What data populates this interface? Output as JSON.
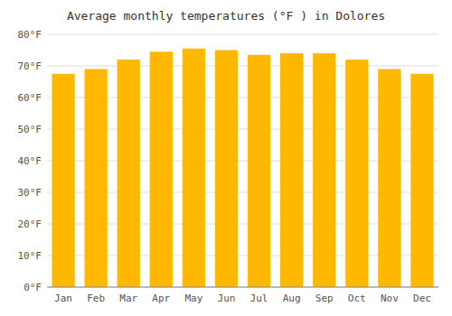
{
  "chart_data": {
    "type": "bar",
    "title": "Average monthly temperatures (°F ) in Dolores",
    "categories": [
      "Jan",
      "Feb",
      "Mar",
      "Apr",
      "May",
      "Jun",
      "Jul",
      "Aug",
      "Sep",
      "Oct",
      "Nov",
      "Dec"
    ],
    "values": [
      67.5,
      69.0,
      72.0,
      74.5,
      75.5,
      75.0,
      73.5,
      74.0,
      74.0,
      72.0,
      69.0,
      67.5
    ],
    "color": "#FFB800",
    "ylim": [
      0,
      80
    ],
    "yticks": [
      {
        "value": 0,
        "label": "0°F"
      },
      {
        "value": 10,
        "label": "10°F"
      },
      {
        "value": 20,
        "label": "20°F"
      },
      {
        "value": 30,
        "label": "30°F"
      },
      {
        "value": 40,
        "label": "40°F"
      },
      {
        "value": 50,
        "label": "50°F"
      },
      {
        "value": 60,
        "label": "60°F"
      },
      {
        "value": 70,
        "label": "70°F"
      },
      {
        "value": 80,
        "label": "80°F"
      }
    ],
    "grid": true
  }
}
